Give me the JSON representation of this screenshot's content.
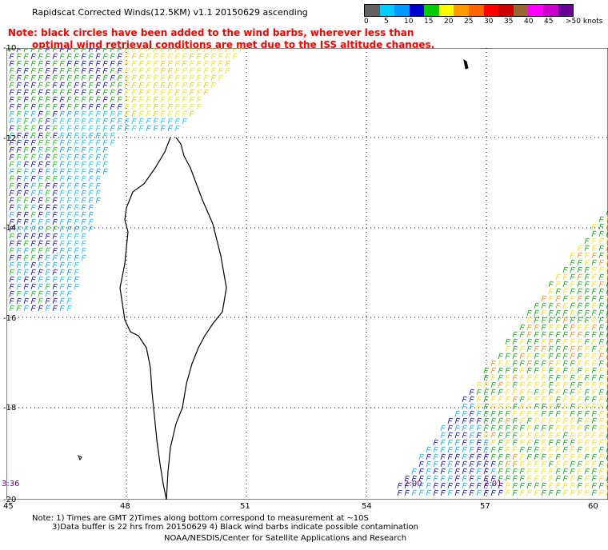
{
  "title": "Rapidscat Corrected Winds(12.5KM) v1.1 20150629 ascending",
  "note_line1": "Note: black circles have been added to the wind barbs, wherever less than",
  "note_line2": "optimal wind retrieval conditions are met due to the ISS altitude changes.",
  "colorbar": {
    "colors": [
      "#606060",
      "#00ccff",
      "#0099ff",
      "#0000cc",
      "#00cc00",
      "#ffff00",
      "#ff9900",
      "#ff6600",
      "#ff0000",
      "#cc0000",
      "#996633",
      "#ff00ff",
      "#cc00cc",
      "#660099"
    ],
    "labels": [
      "0",
      "5",
      "10",
      "15",
      "20",
      "25",
      "30",
      "35",
      "40",
      "45",
      ">50 knots"
    ]
  },
  "latitudes": [
    "-10",
    "-12",
    "-14",
    "-16",
    "-18",
    "-20"
  ],
  "longitudes": [
    "45",
    "48",
    "51",
    "54",
    "57",
    "60"
  ],
  "times": [
    "3:36",
    "2:00",
    "2:01"
  ],
  "footer_line1": "Note: 1) Times are GMT 2)Times along bottom correspond to measurement at ~10S",
  "footer_line2": "3)Data buffer is 22 hrs from 20150629 4) Black wind barbs indicate possible contamination",
  "footer_line3": "NOAA/NESDIS/Center for Satellite Applications and Research"
}
